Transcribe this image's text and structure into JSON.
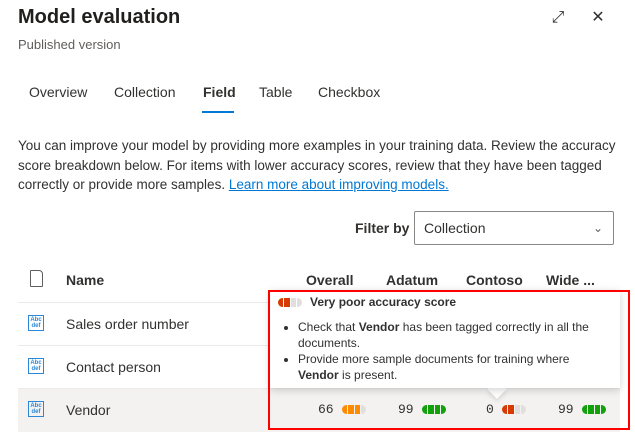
{
  "header": {
    "title": "Model evaluation",
    "subtitle": "Published version",
    "expand_icon": "expand-icon",
    "close_icon": "close-icon"
  },
  "tabs": [
    {
      "label": "Overview"
    },
    {
      "label": "Collection"
    },
    {
      "label": "Field",
      "selected": true
    },
    {
      "label": "Table"
    },
    {
      "label": "Checkbox"
    }
  ],
  "description": {
    "text": "You can improve your model by providing more examples in your training data. Review the accuracy score breakdown below. For items with lower accuracy scores, review that they have been tagged correctly or provide more samples. ",
    "link": "Learn more about improving models."
  },
  "filter": {
    "label": "Filter by",
    "value": "Collection"
  },
  "table": {
    "columns": [
      "Name",
      "Overall",
      "Adatum",
      "Contoso",
      "Wide ..."
    ],
    "rows": [
      {
        "name": "Sales order number",
        "icon": "text-field-icon"
      },
      {
        "name": "Contact person",
        "icon": "text-field-icon"
      },
      {
        "name": "Vendor",
        "icon": "text-field-icon",
        "scores": [
          "66",
          "99",
          "0",
          "99"
        ]
      }
    ]
  },
  "tooltip": {
    "title": "Very poor accuracy score",
    "b1_pre": "Check that ",
    "b1_bold": "Vendor",
    "b1_post": " has been tagged correctly in all the documents.",
    "b2_pre": "Provide more sample documents for training where ",
    "b2_bold": "Vendor",
    "b2_post": " is present."
  },
  "colors": {
    "accent": "#0078d4",
    "good": "#13a10e",
    "fair": "#ff8c00",
    "poor": "#d83b01",
    "highlight": "#ff0000"
  }
}
